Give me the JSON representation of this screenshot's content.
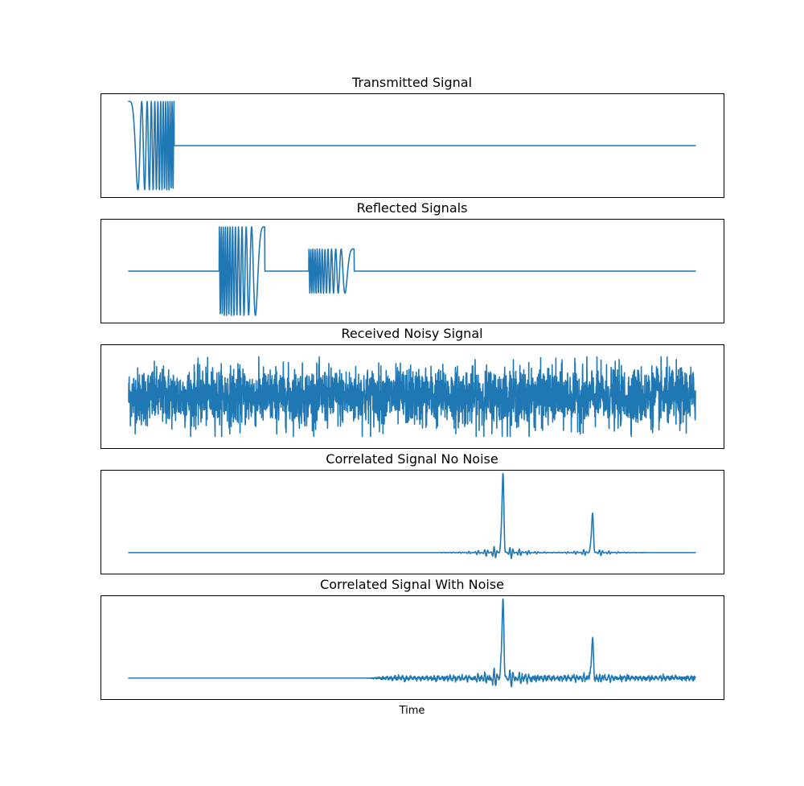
{
  "chart_data": {
    "type": "line",
    "xlabel": "Time",
    "color": "#1f77b4",
    "ticks_visible": false,
    "grid": false,
    "legend": "none",
    "panels": [
      {
        "id": "transmitted",
        "title": "Transmitted Signal",
        "ylim": [
          -1.1,
          1.1
        ],
        "components": [
          {
            "kind": "chirp",
            "start": 0.0,
            "end": 0.08,
            "amplitude": 1.0,
            "direction": "up",
            "cycles": 12
          }
        ]
      },
      {
        "id": "reflected",
        "title": "Reflected Signals",
        "ylim": [
          -1.1,
          1.1
        ],
        "components": [
          {
            "kind": "chirp",
            "start": 0.16,
            "end": 0.24,
            "amplitude": 1.0,
            "direction": "down",
            "cycles": 12
          },
          {
            "kind": "chirp",
            "start": 0.318,
            "end": 0.398,
            "amplitude": 0.5,
            "direction": "down",
            "cycles": 12
          }
        ]
      },
      {
        "id": "received",
        "title": "Received Noisy Signal",
        "ylim": [
          -1.1,
          1.1
        ],
        "components": [
          {
            "kind": "noise",
            "start": 0.0,
            "end": 1.0,
            "amplitude": 0.32,
            "outliers": 0.9
          }
        ]
      },
      {
        "id": "correlated_clean",
        "title": "Correlated Signal No Noise",
        "ylim": [
          -0.23,
          1.0
        ],
        "components": [
          {
            "kind": "pulse",
            "center": 0.66,
            "height": 0.97,
            "ring": 0.13,
            "spread": 0.08
          },
          {
            "kind": "pulse",
            "center": 0.818,
            "height": 0.48,
            "ring": 0.07,
            "spread": 0.07
          }
        ]
      },
      {
        "id": "correlated_noisy",
        "title": "Correlated Signal With Noise",
        "ylim": [
          -0.23,
          1.0
        ],
        "components": [
          {
            "kind": "pulse",
            "center": 0.66,
            "height": 0.97,
            "ring": 0.16,
            "spread": 0.1
          },
          {
            "kind": "pulse",
            "center": 0.818,
            "height": 0.47,
            "ring": 0.09,
            "spread": 0.08
          },
          {
            "kind": "ripple",
            "start": 0.42,
            "end": 1.0,
            "amplitude": 0.025
          }
        ]
      }
    ]
  }
}
